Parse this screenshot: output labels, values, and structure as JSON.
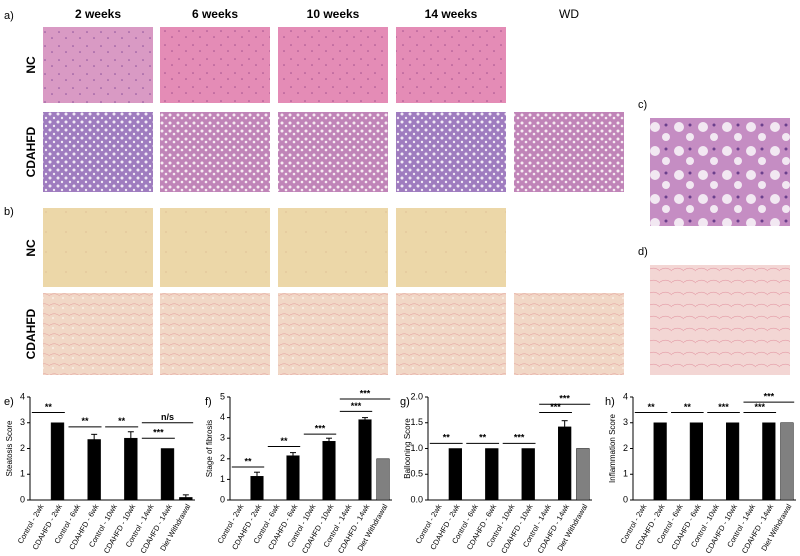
{
  "figure": {
    "panels": [
      "a)",
      "b)",
      "c)",
      "d)",
      "e)",
      "f)",
      "g)",
      "h)"
    ],
    "columns": [
      "2 weeks",
      "6 weeks",
      "10 weeks",
      "14 weeks",
      "WD"
    ],
    "rows": [
      "NC",
      "CDAHFD"
    ]
  },
  "chart_data": [
    {
      "type": "bar",
      "ylabel": "Steatosis Score",
      "categories": [
        "Control - 2wk",
        "CDAHFD - 2wk",
        "Control - 6wk",
        "CDAHFD - 6wk",
        "Control - 10wk",
        "CDAHFD - 10wk",
        "Control - 14wk",
        "CDAHFD - 14wk",
        "Diet Withdrawal"
      ],
      "values": [
        0,
        3,
        0,
        2.35,
        0,
        2.4,
        0,
        2,
        0.1
      ],
      "errors": [
        null,
        null,
        null,
        0.2,
        null,
        0.25,
        null,
        null,
        0.1
      ],
      "colors": [
        "#000000",
        "#000000",
        "#000000",
        "#000000",
        "#000000",
        "#000000",
        "#000000",
        "#000000",
        "#000000"
      ],
      "ylim": [
        0,
        4
      ],
      "yticks": [
        0,
        1,
        2,
        3,
        4
      ],
      "annotations": [
        "**",
        "**",
        "**",
        "***",
        "n/s"
      ]
    },
    {
      "type": "bar",
      "ylabel": "Stage of fibrosis",
      "categories": [
        "Control - 2wk",
        "CDAHFD - 2wk",
        "Control - 6wk",
        "CDAHFD - 6wk",
        "Control - 10wk",
        "CDAHFD - 10wk",
        "Control - 14wk",
        "CDAHFD - 14wk",
        "Diet Withdrawal"
      ],
      "values": [
        0,
        1.15,
        0,
        2.15,
        0,
        2.85,
        0,
        3.9,
        2
      ],
      "errors": [
        null,
        0.2,
        null,
        0.15,
        null,
        0.15,
        null,
        0.1,
        null
      ],
      "colors": [
        "#000000",
        "#000000",
        "#000000",
        "#000000",
        "#000000",
        "#000000",
        "#000000",
        "#000000",
        "#808080"
      ],
      "ylim": [
        0,
        5
      ],
      "yticks": [
        0,
        1,
        2,
        3,
        4,
        5
      ],
      "annotations": [
        "**",
        "**",
        "***",
        "***",
        "***"
      ]
    },
    {
      "type": "bar",
      "ylabel": "Ballooning Score",
      "categories": [
        "Control - 2wk",
        "CDAHFD - 2wk",
        "Control - 6wk",
        "CDAHFD - 6wk",
        "Control - 10wk",
        "CDAHFD - 10wk",
        "Control - 14wk",
        "CDAHFD - 14wk",
        "Diet Withdrawal"
      ],
      "values": [
        0,
        1,
        0,
        1,
        0,
        1,
        0,
        1.42,
        1
      ],
      "errors": [
        null,
        null,
        null,
        null,
        null,
        null,
        null,
        0.12,
        null
      ],
      "colors": [
        "#000000",
        "#000000",
        "#000000",
        "#000000",
        "#000000",
        "#000000",
        "#000000",
        "#000000",
        "#808080"
      ],
      "ylim": [
        0,
        2
      ],
      "yticks": [
        {
          "value": 0,
          "label": "0.0"
        },
        0.5,
        {
          "value": 1,
          "label": "1.0"
        },
        1.5,
        {
          "value": 2,
          "label": "2.0"
        }
      ],
      "annotations": [
        "**",
        "**",
        "***",
        "***",
        "***"
      ]
    },
    {
      "type": "bar",
      "ylabel": "Inflammation Score",
      "categories": [
        "Control - 2wk",
        "CDAHFD - 2wk",
        "Control - 6wk",
        "CDAHFD - 6wk",
        "Control - 10wk",
        "CDAHFD - 10wk",
        "Control - 14wk",
        "CDAHFD - 14wk",
        "Diet Withdrawal"
      ],
      "values": [
        0,
        3,
        0,
        3,
        0,
        3,
        0,
        3,
        3
      ],
      "errors": [
        null,
        null,
        null,
        null,
        null,
        null,
        null,
        null,
        null
      ],
      "colors": [
        "#000000",
        "#000000",
        "#000000",
        "#000000",
        "#000000",
        "#000000",
        "#000000",
        "#000000",
        "#808080"
      ],
      "ylim": [
        0,
        4
      ],
      "yticks": [
        0,
        1,
        2,
        3,
        4
      ],
      "annotations": [
        "**",
        "**",
        "***",
        "***",
        "***"
      ]
    }
  ]
}
